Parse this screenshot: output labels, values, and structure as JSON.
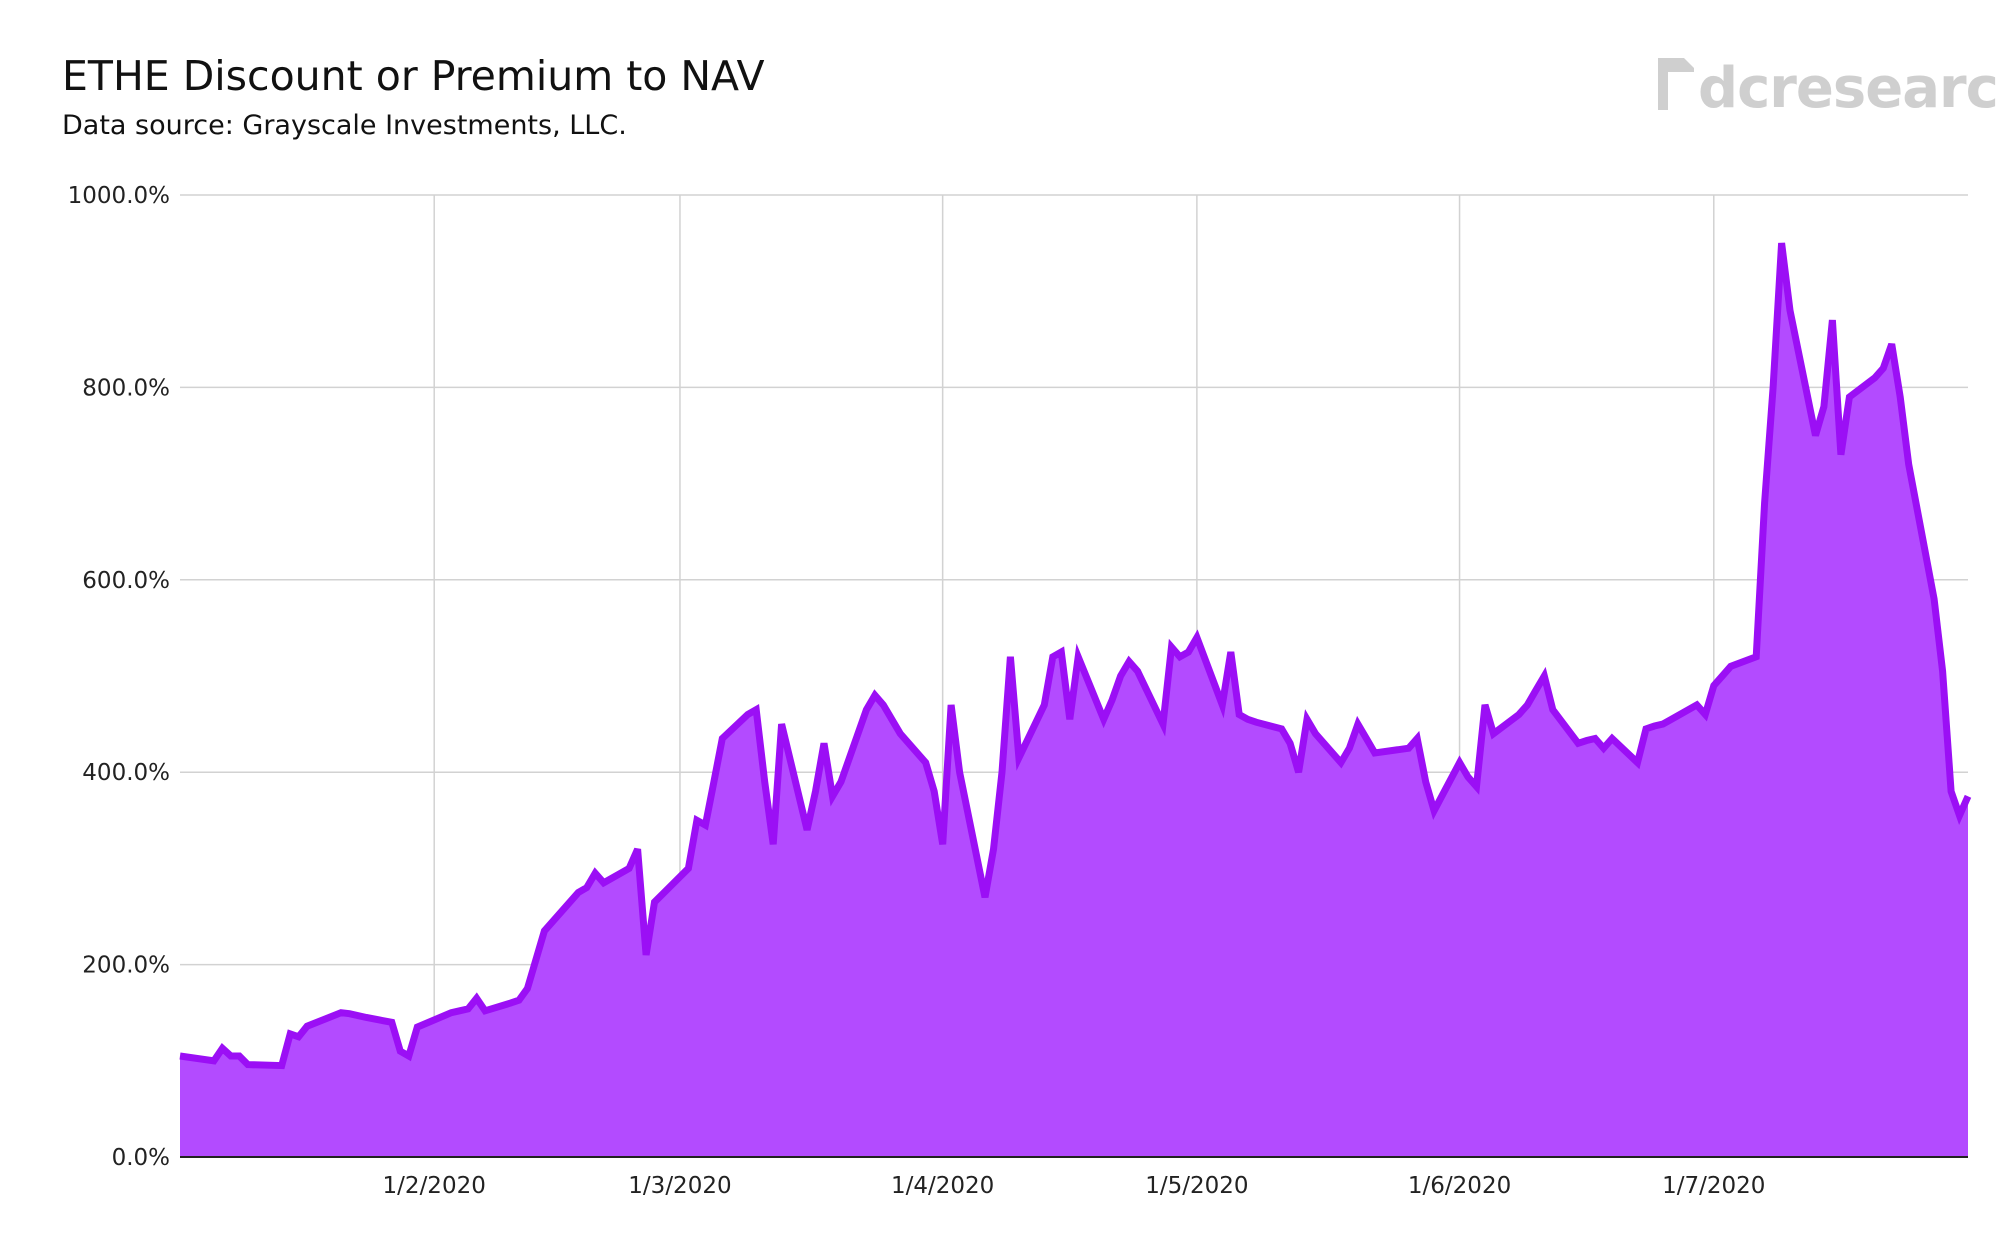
{
  "title": "ETHE Discount or Premium to NAV",
  "subtitle": "Data source: Grayscale Investments, LLC.",
  "logo_text": "dcresearch",
  "colors": {
    "line": "#9b0ff5",
    "fill": "#b34bff",
    "grid": "#d2d2d2",
    "axis": "#222222",
    "logo": "#cfcfcf"
  },
  "chart_data": {
    "type": "area",
    "title": "ETHE Discount or Premium to NAV",
    "subtitle": "Data source: Grayscale Investments, LLC.",
    "xlabel": "",
    "ylabel": "",
    "ylim": [
      0,
      1000
    ],
    "y_ticks": [
      0,
      200,
      400,
      600,
      800,
      1000
    ],
    "y_tick_labels": [
      "0.0%",
      "200.0%",
      "400.0%",
      "600.0%",
      "800.0%",
      "1000.0%"
    ],
    "xlim": [
      "2020-01-02",
      "2020-07-31"
    ],
    "x_ticks": [
      "2020-02-01",
      "2020-03-01",
      "2020-04-01",
      "2020-05-01",
      "2020-06-01",
      "2020-07-01"
    ],
    "x_tick_labels": [
      "1/2/2020",
      "1/3/2020",
      "1/4/2020",
      "1/5/2020",
      "1/6/2020",
      "1/7/2020"
    ],
    "grid": true,
    "series": [
      {
        "points": [
          [
            "2020-01-02",
            105
          ],
          [
            "2020-01-06",
            100
          ],
          [
            "2020-01-07",
            113
          ],
          [
            "2020-01-08",
            105
          ],
          [
            "2020-01-09",
            105
          ],
          [
            "2020-01-10",
            96
          ],
          [
            "2020-01-14",
            95
          ],
          [
            "2020-01-15",
            128
          ],
          [
            "2020-01-16",
            125
          ],
          [
            "2020-01-17",
            136
          ],
          [
            "2020-01-21",
            150
          ],
          [
            "2020-01-22",
            149
          ],
          [
            "2020-01-24",
            145
          ],
          [
            "2020-01-27",
            140
          ],
          [
            "2020-01-28",
            110
          ],
          [
            "2020-01-29",
            105
          ],
          [
            "2020-01-30",
            135
          ],
          [
            "2020-02-03",
            150
          ],
          [
            "2020-02-04",
            152
          ],
          [
            "2020-02-05",
            154
          ],
          [
            "2020-02-06",
            165
          ],
          [
            "2020-02-07",
            152
          ],
          [
            "2020-02-10",
            160
          ],
          [
            "2020-02-11",
            163
          ],
          [
            "2020-02-12",
            175
          ],
          [
            "2020-02-13",
            205
          ],
          [
            "2020-02-14",
            235
          ],
          [
            "2020-02-18",
            275
          ],
          [
            "2020-02-19",
            280
          ],
          [
            "2020-02-20",
            295
          ],
          [
            "2020-02-21",
            285
          ],
          [
            "2020-02-24",
            300
          ],
          [
            "2020-02-25",
            320
          ],
          [
            "2020-02-26",
            210
          ],
          [
            "2020-02-27",
            265
          ],
          [
            "2020-03-02",
            300
          ],
          [
            "2020-03-03",
            350
          ],
          [
            "2020-03-04",
            345
          ],
          [
            "2020-03-05",
            390
          ],
          [
            "2020-03-06",
            435
          ],
          [
            "2020-03-09",
            460
          ],
          [
            "2020-03-10",
            465
          ],
          [
            "2020-03-11",
            390
          ],
          [
            "2020-03-12",
            325
          ],
          [
            "2020-03-13",
            450
          ],
          [
            "2020-03-16",
            340
          ],
          [
            "2020-03-17",
            380
          ],
          [
            "2020-03-18",
            430
          ],
          [
            "2020-03-19",
            375
          ],
          [
            "2020-03-20",
            390
          ],
          [
            "2020-03-23",
            465
          ],
          [
            "2020-03-24",
            480
          ],
          [
            "2020-03-25",
            470
          ],
          [
            "2020-03-26",
            455
          ],
          [
            "2020-03-27",
            440
          ],
          [
            "2020-03-30",
            410
          ],
          [
            "2020-03-31",
            380
          ],
          [
            "2020-04-01",
            325
          ],
          [
            "2020-04-02",
            470
          ],
          [
            "2020-04-03",
            400
          ],
          [
            "2020-04-06",
            270
          ],
          [
            "2020-04-07",
            320
          ],
          [
            "2020-04-08",
            400
          ],
          [
            "2020-04-09",
            520
          ],
          [
            "2020-04-10",
            415
          ],
          [
            "2020-04-13",
            470
          ],
          [
            "2020-04-14",
            520
          ],
          [
            "2020-04-15",
            525
          ],
          [
            "2020-04-16",
            455
          ],
          [
            "2020-04-17",
            520
          ],
          [
            "2020-04-20",
            455
          ],
          [
            "2020-04-21",
            475
          ],
          [
            "2020-04-22",
            500
          ],
          [
            "2020-04-23",
            515
          ],
          [
            "2020-04-24",
            505
          ],
          [
            "2020-04-27",
            450
          ],
          [
            "2020-04-28",
            530
          ],
          [
            "2020-04-29",
            520
          ],
          [
            "2020-04-30",
            525
          ],
          [
            "2020-05-01",
            540
          ],
          [
            "2020-05-04",
            470
          ],
          [
            "2020-05-05",
            525
          ],
          [
            "2020-05-06",
            460
          ],
          [
            "2020-05-07",
            455
          ],
          [
            "2020-05-08",
            452
          ],
          [
            "2020-05-11",
            445
          ],
          [
            "2020-05-12",
            430
          ],
          [
            "2020-05-13",
            400
          ],
          [
            "2020-05-14",
            455
          ],
          [
            "2020-05-15",
            440
          ],
          [
            "2020-05-18",
            410
          ],
          [
            "2020-05-19",
            425
          ],
          [
            "2020-05-20",
            450
          ],
          [
            "2020-05-21",
            435
          ],
          [
            "2020-05-22",
            420
          ],
          [
            "2020-05-26",
            425
          ],
          [
            "2020-05-27",
            435
          ],
          [
            "2020-05-28",
            390
          ],
          [
            "2020-05-29",
            360
          ],
          [
            "2020-06-01",
            410
          ],
          [
            "2020-06-02",
            395
          ],
          [
            "2020-06-03",
            385
          ],
          [
            "2020-06-04",
            470
          ],
          [
            "2020-06-05",
            440
          ],
          [
            "2020-06-08",
            460
          ],
          [
            "2020-06-09",
            470
          ],
          [
            "2020-06-10",
            485
          ],
          [
            "2020-06-11",
            500
          ],
          [
            "2020-06-12",
            465
          ],
          [
            "2020-06-15",
            430
          ],
          [
            "2020-06-16",
            433
          ],
          [
            "2020-06-17",
            435
          ],
          [
            "2020-06-18",
            425
          ],
          [
            "2020-06-19",
            435
          ],
          [
            "2020-06-22",
            410
          ],
          [
            "2020-06-23",
            445
          ],
          [
            "2020-06-24",
            448
          ],
          [
            "2020-06-25",
            450
          ],
          [
            "2020-06-26",
            455
          ],
          [
            "2020-06-29",
            470
          ],
          [
            "2020-06-30",
            460
          ],
          [
            "2020-07-01",
            490
          ],
          [
            "2020-07-02",
            500
          ],
          [
            "2020-07-03",
            510
          ],
          [
            "2020-07-06",
            520
          ],
          [
            "2020-07-07",
            680
          ],
          [
            "2020-07-08",
            800
          ],
          [
            "2020-07-09",
            950
          ],
          [
            "2020-07-10",
            880
          ],
          [
            "2020-07-13",
            750
          ],
          [
            "2020-07-14",
            780
          ],
          [
            "2020-07-15",
            870
          ],
          [
            "2020-07-16",
            730
          ],
          [
            "2020-07-17",
            790
          ],
          [
            "2020-07-20",
            810
          ],
          [
            "2020-07-21",
            820
          ],
          [
            "2020-07-22",
            845
          ],
          [
            "2020-07-23",
            790
          ],
          [
            "2020-07-24",
            720
          ],
          [
            "2020-07-27",
            580
          ],
          [
            "2020-07-28",
            505
          ],
          [
            "2020-07-29",
            380
          ],
          [
            "2020-07-30",
            355
          ],
          [
            "2020-07-31",
            375
          ]
        ]
      }
    ]
  }
}
